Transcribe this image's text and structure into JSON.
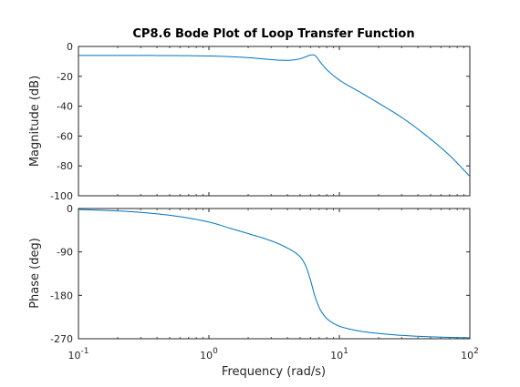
{
  "chart_data": {
    "type": "line",
    "title": "CP8.6 Bode Plot of Loop Transfer Function",
    "xlabel": "Frequency  (rad/s)",
    "x_scale": "log",
    "xlim": [
      0.1,
      100
    ],
    "x_ticks": [
      {
        "value": 0.1,
        "base": "10",
        "exp": "-1"
      },
      {
        "value": 1,
        "base": "10",
        "exp": "0"
      },
      {
        "value": 10,
        "base": "10",
        "exp": "1"
      },
      {
        "value": 100,
        "base": "10",
        "exp": "2"
      }
    ],
    "grid": false,
    "line_color": "#0072bd",
    "axis_color": "#262626",
    "panels": [
      {
        "name": "magnitude",
        "ylabel": "Magnitude (dB)",
        "ylim": [
          -100,
          0
        ],
        "yticks": [
          0,
          -20,
          -40,
          -60,
          -80,
          -100
        ],
        "series": [
          {
            "x": [
              0.1,
              0.2,
              0.5,
              1,
              1.5,
              2,
              2.5,
              3,
              3.5,
              4,
              4.5,
              5,
              5.5,
              6,
              6.3,
              6.6,
              7,
              8,
              10,
              15,
              20,
              30,
              50,
              70,
              100
            ],
            "y": [
              -6.0,
              -6.0,
              -6.1,
              -6.4,
              -6.9,
              -7.5,
              -8.2,
              -8.8,
              -9.2,
              -9.3,
              -9.0,
              -8.2,
              -7.0,
              -5.8,
              -5.6,
              -6.5,
              -9.5,
              -15.5,
              -22.5,
              -31.5,
              -38.0,
              -47.5,
              -62.0,
              -73.0,
              -87.0
            ]
          }
        ]
      },
      {
        "name": "phase",
        "ylabel": "Phase (deg)",
        "ylim": [
          -270,
          0
        ],
        "yticks": [
          0,
          -90,
          -180,
          -270
        ],
        "series": [
          {
            "x": [
              0.1,
              0.2,
              0.3,
              0.5,
              1,
              1.5,
              2,
              3,
              4,
              5,
              5.5,
              6,
              6.5,
              7,
              7.5,
              8,
              9,
              10,
              12,
              15,
              20,
              30,
              50,
              100
            ],
            "y": [
              -2,
              -5,
              -8,
              -14,
              -28,
              -42,
              -52,
              -67,
              -82,
              -100,
              -118,
              -148,
              -182,
              -205,
              -219,
              -228,
              -238,
              -244,
              -250,
              -255,
              -259,
              -263,
              -266,
              -268
            ]
          }
        ]
      }
    ]
  }
}
